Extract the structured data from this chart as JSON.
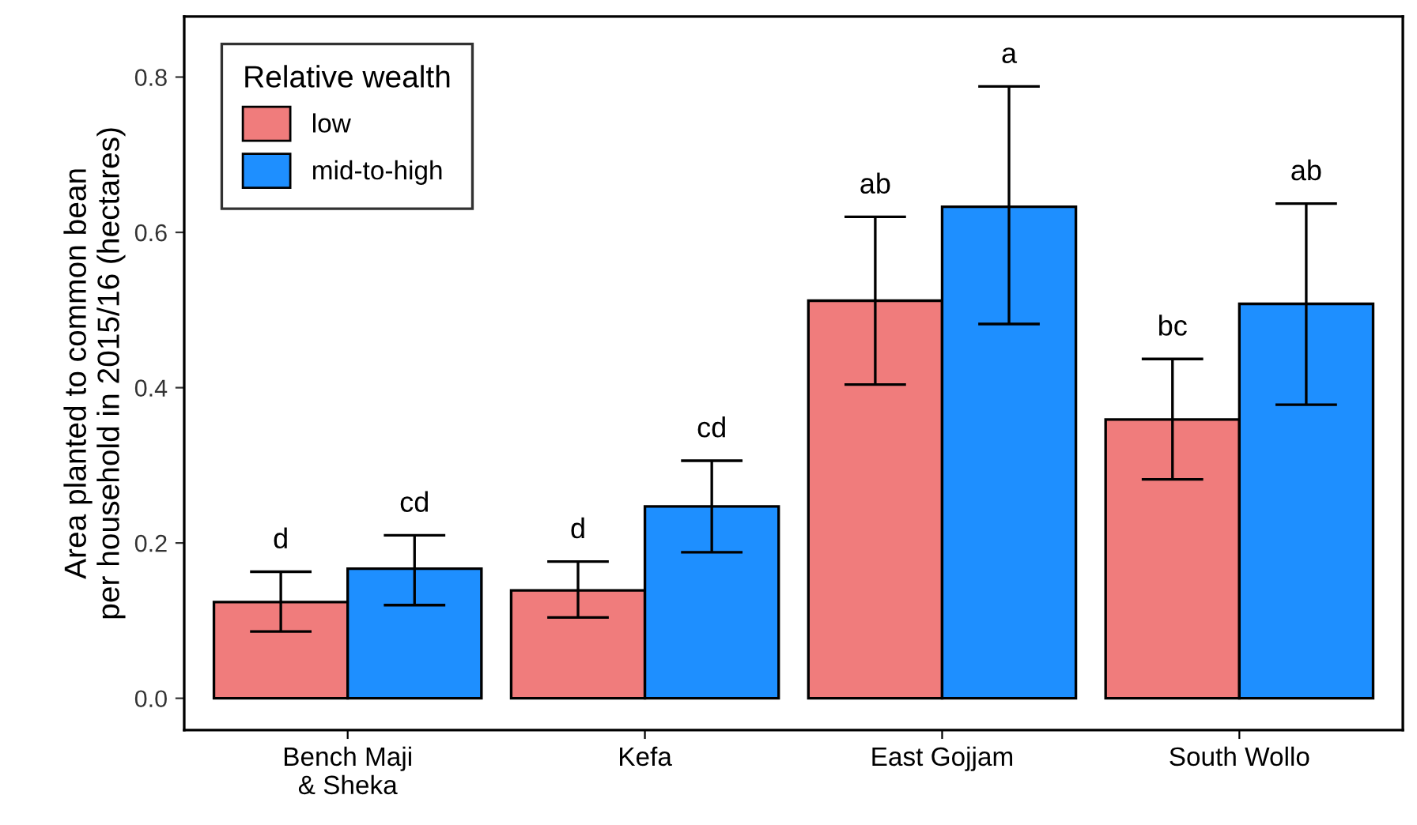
{
  "chart_data": {
    "type": "bar",
    "ylabel": "Area planted to common bean\nper household in 2015/16 (hectares)",
    "legend_title": "Relative wealth",
    "categories": [
      "Bench Maji\n& Sheka",
      "Kefa",
      "East Gojjam",
      "South Wollo"
    ],
    "series": [
      {
        "name": "low",
        "color": "#f07c7c",
        "values": [
          0.124,
          0.139,
          0.512,
          0.359
        ],
        "errors": [
          [
            0.086,
            0.163
          ],
          [
            0.104,
            0.176
          ],
          [
            0.404,
            0.62
          ],
          [
            0.282,
            0.437
          ]
        ]
      },
      {
        "name": "mid-to-high",
        "color": "#1e8fff",
        "values": [
          0.167,
          0.247,
          0.633,
          0.508
        ],
        "errors": [
          [
            0.12,
            0.21
          ],
          [
            0.188,
            0.306
          ],
          [
            0.482,
            0.788
          ],
          [
            0.378,
            0.637
          ]
        ]
      }
    ],
    "annotations": [
      "d",
      "cd",
      "d",
      "cd",
      "ab",
      "a",
      "bc",
      "ab"
    ],
    "ylim": [
      -0.041,
      0.878
    ],
    "yticks": [
      {
        "value": 0,
        "label": "0.0"
      },
      0.2,
      0.4,
      0.6,
      0.8
    ],
    "legend": "top left",
    "grid": false
  }
}
